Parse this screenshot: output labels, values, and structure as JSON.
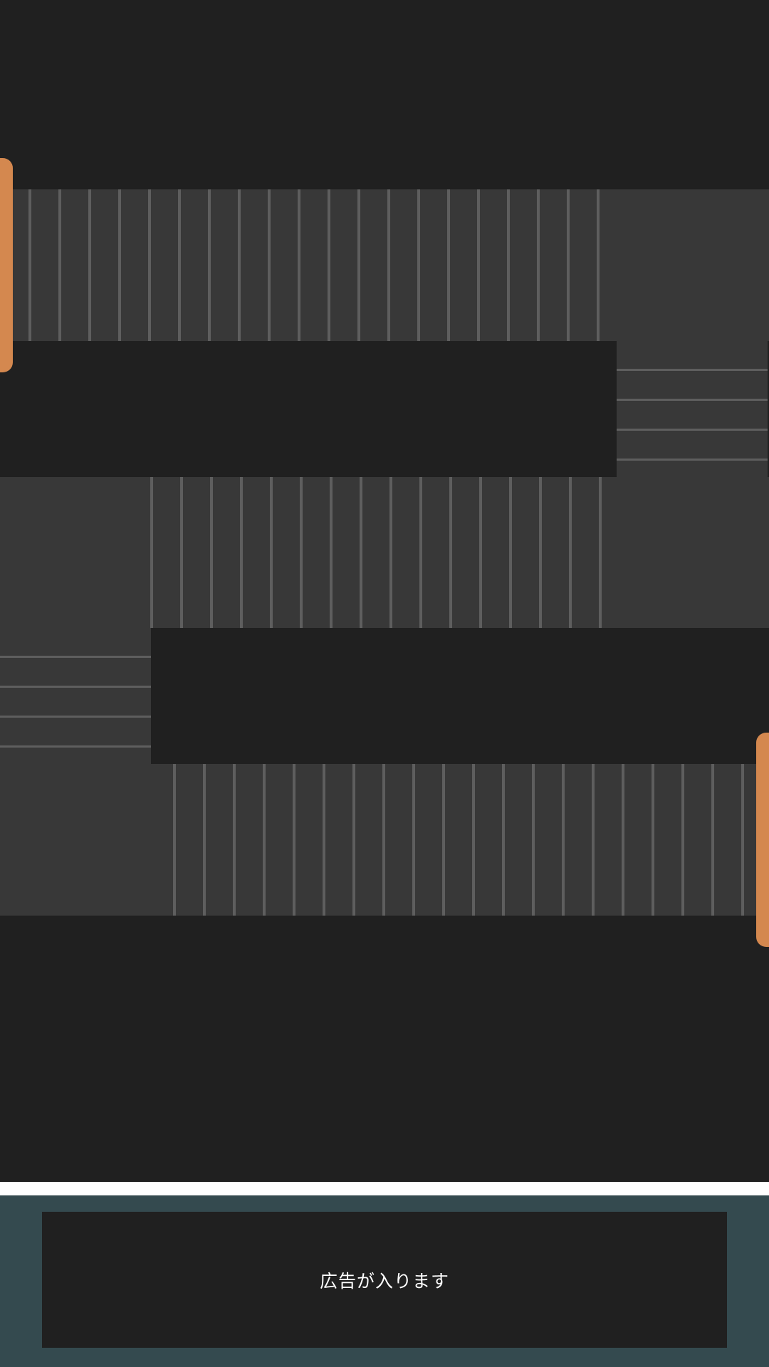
{
  "game": {
    "colors": {
      "background": "#202020",
      "track": "#383838",
      "track_line": "#5e5e5e",
      "ball": "#d4884f"
    }
  },
  "ad": {
    "text": "広告が入ります",
    "background": "#344a4f",
    "box_color": "#202020"
  }
}
